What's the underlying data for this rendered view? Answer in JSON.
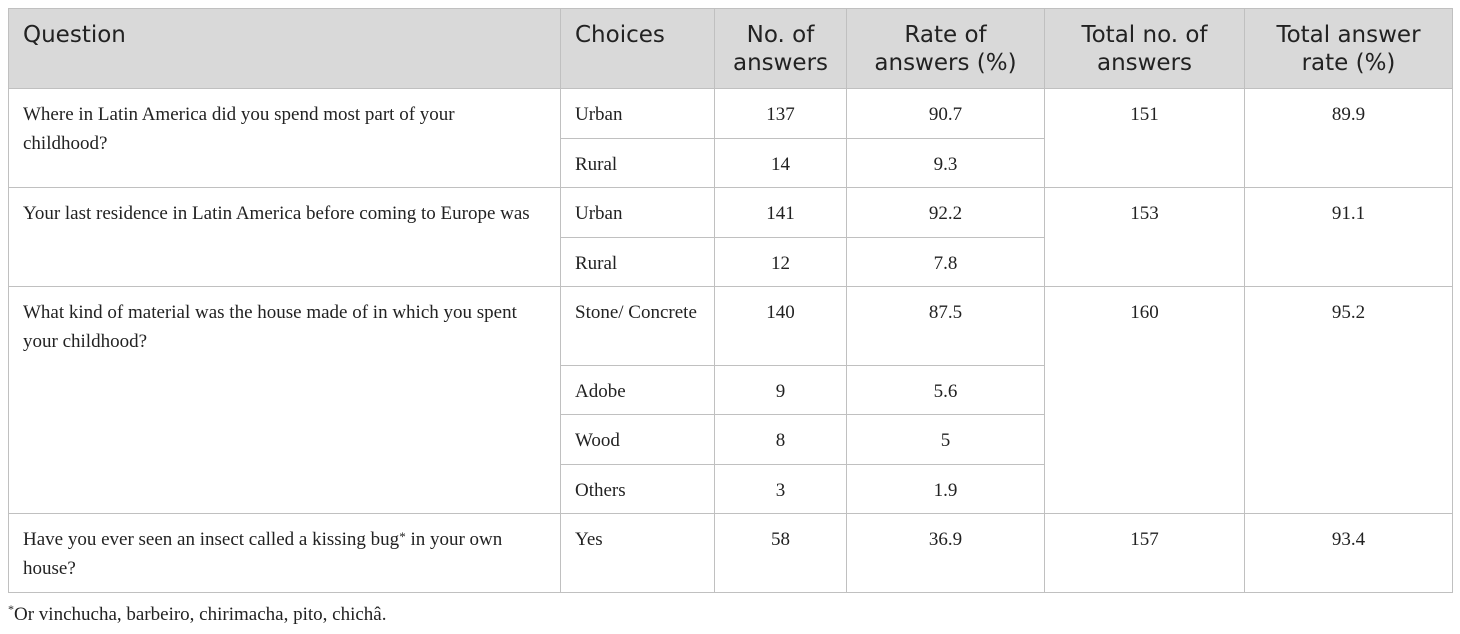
{
  "table": {
    "headers": [
      "Question",
      "Choices",
      "No. of answers",
      "Rate of answers (%)",
      "Total no. of answers",
      "Total answer rate (%)"
    ],
    "groups": [
      {
        "question": "Where in Latin America did you spend most part of your childhood?",
        "total_answers": "151",
        "total_rate": "89.9",
        "rows": [
          {
            "choice": "Urban",
            "answers": "137",
            "rate": "90.7"
          },
          {
            "choice": "Rural",
            "answers": "14",
            "rate": "9.3"
          }
        ]
      },
      {
        "question": "Your last residence in Latin America before coming to Europe was",
        "total_answers": "153",
        "total_rate": "91.1",
        "rows": [
          {
            "choice": "Urban",
            "answers": "141",
            "rate": "92.2"
          },
          {
            "choice": "Rural",
            "answers": "12",
            "rate": "7.8"
          }
        ]
      },
      {
        "question": "What kind of material was the house made of in which you spent your childhood?",
        "total_answers": "160",
        "total_rate": "95.2",
        "rows": [
          {
            "choice": "Stone/ Concrete",
            "answers": "140",
            "rate": "87.5"
          },
          {
            "choice": "Adobe",
            "answers": "9",
            "rate": "5.6"
          },
          {
            "choice": "Wood",
            "answers": "8",
            "rate": "5"
          },
          {
            "choice": "Others",
            "answers": "3",
            "rate": "1.9"
          }
        ]
      },
      {
        "question_before": "Have you ever seen an insect called a kissing bug",
        "question_mark": "*",
        "question_after": " in your own house?",
        "total_answers": "157",
        "total_rate": "93.4",
        "rows": [
          {
            "choice": "Yes",
            "answers": "58",
            "rate": "36.9"
          }
        ]
      }
    ]
  },
  "footnote": {
    "marker": "*",
    "text": "Or vinchucha, barbeiro, chirimacha, pito, chichâ."
  }
}
